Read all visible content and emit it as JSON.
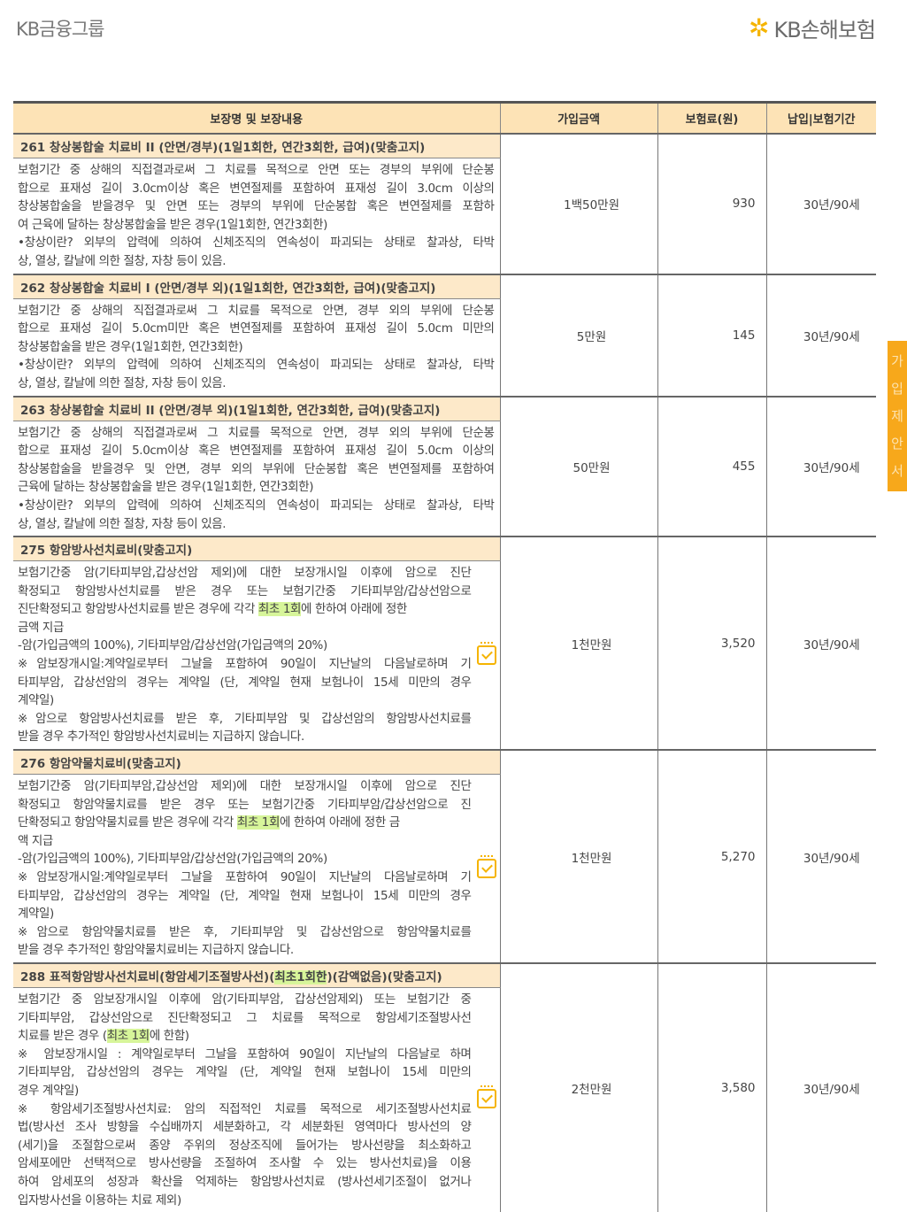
{
  "header": {
    "left_logo": "KB금융그룹",
    "right_logo": "KB손해보험"
  },
  "side_tab": {
    "label": "가입제안서"
  },
  "table": {
    "columns": [
      "보장명 및 보장내용",
      "가입금액",
      "보험료(원)",
      "납입|보험기간"
    ],
    "rows": [
      {
        "title": "261  창상봉합술 치료비 II (안면/경부)(1일1회한, 연간3회한, 급여)(맞춤고지)",
        "amount": "1백50만원",
        "premium": "930",
        "period": "30년/90세",
        "icon": false,
        "lines": [
          [
            "보험기간 중 상해의 직접결과로써 그 치료를 목적으로 안면 또는 경부의 부위에 단순봉"
          ],
          [
            "합으로 표재성 길이 3.0cm이상 혹은 변연절제를 포함하여 표재성 길이 3.0cm 이상의"
          ],
          [
            "창상봉합술을 받을경우 및 안면 또는 경부의 부위에 단순봉합 혹은 변연절제를 포함하"
          ],
          [
            "여 근육에 달하는 창상봉합술을 받은 경우(1일1회한, 연간3회한)"
          ],
          [
            "•창상이란? 외부의 압력에 의하여 신체조직의 연속성이 파괴되는 상태로 찰과상, 타박"
          ],
          [
            "상, 열상, 칼날에 의한 절창, 자창 등이 있음."
          ]
        ]
      },
      {
        "title": "262  창상봉합술 치료비 I (안면/경부 외)(1일1회한, 연간3회한, 급여)(맞춤고지)",
        "amount": "5만원",
        "premium": "145",
        "period": "30년/90세",
        "icon": false,
        "lines": [
          [
            "보험기간 중 상해의 직접결과로써 그 치료를 목적으로 안면, 경부 외의 부위에 단순봉"
          ],
          [
            "합으로 표재성 길이 5.0cm미만 혹은 변연절제를 포함하여 표재성 길이 5.0cm 미만의"
          ],
          [
            "창상봉합술을 받은 경우(1일1회한, 연간3회한)"
          ],
          [
            "•창상이란? 외부의 압력에 의하여 신체조직의 연속성이 파괴되는 상태로 찰과상, 타박"
          ],
          [
            "상, 열상, 칼날에 의한 절창, 자창 등이 있음."
          ]
        ]
      },
      {
        "title": "263  창상봉합술 치료비 II (안면/경부 외)(1일1회한, 연간3회한, 급여)(맞춤고지)",
        "amount": "50만원",
        "premium": "455",
        "period": "30년/90세",
        "icon": false,
        "lines": [
          [
            "보험기간 중 상해의 직접결과로써 그 치료를 목적으로 안면, 경부 외의 부위에 단순봉"
          ],
          [
            "합으로 표재성 길이 5.0cm이상 혹은 변연절제를 포함하여 표재성 길이 5.0cm 이상의"
          ],
          [
            "창상봉합술을 받을경우 및 안면, 경부 외의 부위에 단순봉합 혹은 변연절제를 포함하여"
          ],
          [
            "근육에 달하는 창상봉합술을 받은 경우(1일1회한, 연간3회한)"
          ],
          [
            "•창상이란? 외부의 압력에 의하여 신체조직의 연속성이 파괴되는 상태로 찰과상, 타박"
          ],
          [
            "상, 열상, 칼날에 의한 절창, 자창 등이 있음."
          ]
        ]
      },
      {
        "title": "275  항암방사선치료비(맞춤고지)",
        "amount": "1천만원",
        "premium": "3,520",
        "period": "30년/90세",
        "icon": true,
        "lines": [
          [
            "보험기간중 암(기타피부암,갑상선암 제외)에 대한 보장개시일 이후에 암으로 진단"
          ],
          [
            "확정되고 항암방사선치료를 받은 경우 또는 보험기간중 기타피부암/갑상선암으로"
          ],
          [
            "진단확정되고 항암방사선치료를 받은 경우에 각각 ",
            "최초 1회",
            "에 한하여 아래에 정한"
          ],
          [
            "금액 지급"
          ],
          [
            " -암(가입금액의 100%), 기타피부암/갑상선암(가입금액의 20%)"
          ],
          [
            "※암보장개시일:계약일로부터 그날을 포함하여 90일이 지난날의 다음날로하며 기"
          ],
          [
            "타피부암, 갑상선암의 경우는 계약일 (단, 계약일 현재 보험나이 15세 미만의 경우"
          ],
          [
            "계약일)"
          ],
          [
            "※암으로 항암방사선치료를 받은 후, 기타피부암 및 갑상선암의 항암방사선치료를"
          ],
          [
            "받을 경우 추가적인 항암방사선치료비는 지급하지 않습니다."
          ]
        ]
      },
      {
        "title": "276  항암약물치료비(맞춤고지)",
        "amount": "1천만원",
        "premium": "5,270",
        "period": "30년/90세",
        "icon": true,
        "lines": [
          [
            "보험기간중 암(기타피부암,갑상선암 제외)에 대한 보장개시일 이후에 암으로 진단"
          ],
          [
            "확정되고 항암약물치료를 받은 경우 또는 보험기간중 기타피부암/갑상선암으로 진"
          ],
          [
            "단확정되고 항암약물치료를 받은 경우에 각각 ",
            "최초 1회",
            "에 한하여 아래에 정한 금"
          ],
          [
            "액 지급"
          ],
          [
            " -암(가입금액의 100%), 기타피부암/갑상선암(가입금액의 20%)"
          ],
          [
            "※암보장개시일:계약일로부터 그날을 포함하여 90일이 지난날의 다음날로하며 기"
          ],
          [
            "타피부암, 갑상선암의 경우는 계약일 (단, 계약일 현재 보험나이 15세 미만의 경우"
          ],
          [
            "계약일)"
          ],
          [
            "※암으로 항암약물치료를 받은 후, 기타피부암 및 갑상선암으로 항암약물치료를"
          ],
          [
            "받을 경우 추가적인 항암약물치료비는 지급하지 않습니다."
          ]
        ]
      },
      {
        "title_parts": [
          "288  표적항암방사선치료비(항암세기조절방사선)(",
          "최초1회한",
          ")(감액없음)(맞춤고지)"
        ],
        "amount": "2천만원",
        "premium": "3,580",
        "period": "30년/90세",
        "icon": true,
        "lines": [
          [
            "보험기간 중 암보장개시일 이후에 암(기타피부암, 갑상선암제외) 또는 보험기간 중"
          ],
          [
            "기타피부암, 갑상선암으로 진단확정되고 그 치료를 목적으로 항암세기조절방사선"
          ],
          [
            "치료를 받은 경우 (",
            "최초 1회",
            "에 한함)"
          ],
          [
            "※ 암보장개시일 : 계약일로부터 그날을 포함하여 90일이 지난날의 다음날로 하며"
          ],
          [
            "기타피부암, 갑상선암의 경우는 계약일 (단, 계약일 현재 보험나이 15세 미만의"
          ],
          [
            "경우 계약일)"
          ],
          [
            "※ 항암세기조절방사선치료: 암의 직접적인 치료를 목적으로 세기조절방사선치료"
          ],
          [
            "법(방사선 조사 방향을 수십배까지 세분화하고, 각 세분화된 영역마다 방사선의 양"
          ],
          [
            "(세기)을 조절함으로써 종양 주위의 정상조직에 들어가는 방사선량을 최소화하고"
          ],
          [
            "암세포에만 선택적으로 방사선량을 조절하여 조사할 수 있는 방사선치료)을 이용"
          ],
          [
            "하여 암세포의 성장과 확산을 억제하는 항암방사선치료 (방사선세기조절이 없거나"
          ],
          [
            "입자방사선을 이용하는 치료 제외)"
          ]
        ]
      }
    ]
  },
  "colors": {
    "header_bg": "#fde3b6",
    "title_bg": "#fde9c9",
    "highlight": "#d7f59a",
    "accent": "#f7a81b"
  }
}
